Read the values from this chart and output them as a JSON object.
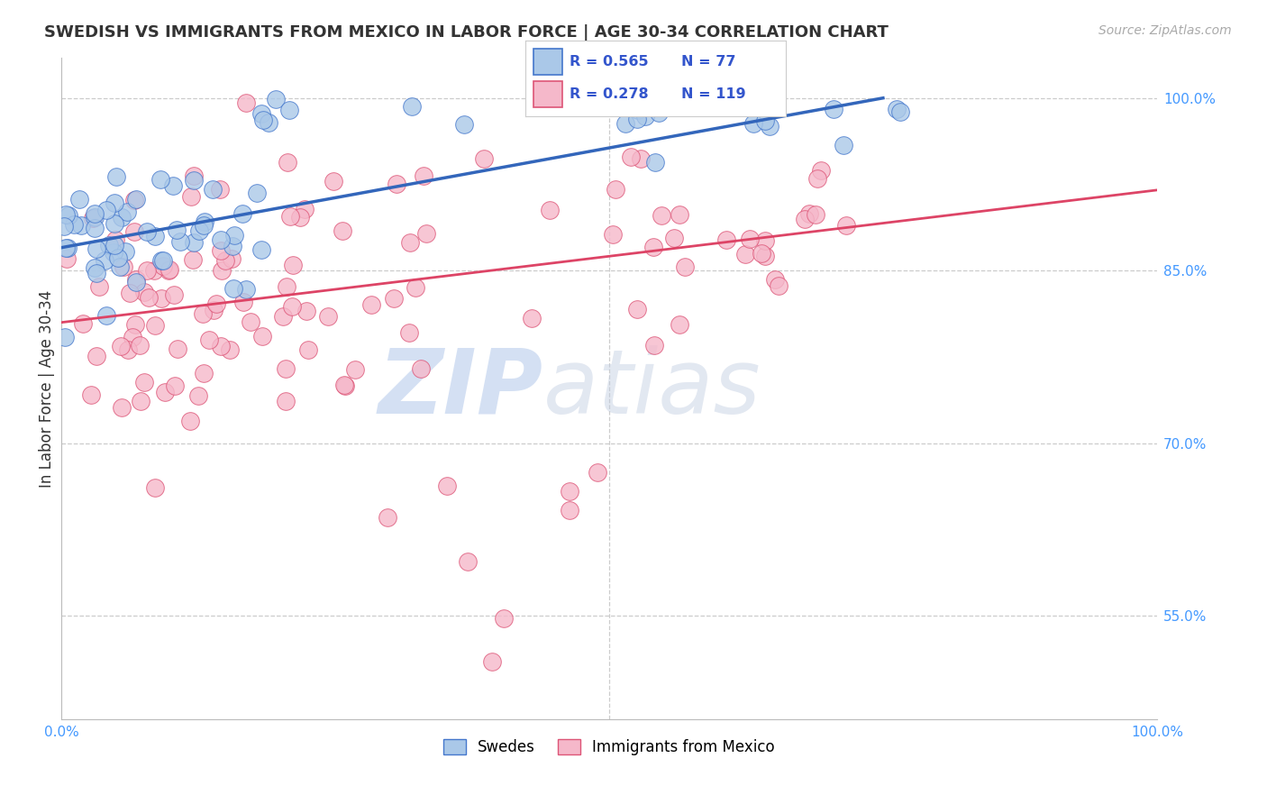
{
  "title": "SWEDISH VS IMMIGRANTS FROM MEXICO IN LABOR FORCE | AGE 30-34 CORRELATION CHART",
  "source": "Source: ZipAtlas.com",
  "ylabel": "In Labor Force | Age 30-34",
  "xlim": [
    0.0,
    1.0
  ],
  "ylim": [
    0.46,
    1.035
  ],
  "ytick_vals": [
    0.55,
    0.7,
    0.85,
    1.0
  ],
  "ytick_labels": [
    "55.0%",
    "70.0%",
    "85.0%",
    "100.0%"
  ],
  "blue_R": 0.565,
  "blue_N": 77,
  "pink_R": 0.278,
  "pink_N": 119,
  "blue_color": "#aac8e8",
  "pink_color": "#f5b8ca",
  "blue_edge_color": "#4477cc",
  "pink_edge_color": "#dd5577",
  "blue_line_color": "#3366bb",
  "pink_line_color": "#dd4466",
  "watermark_zip_color": "#c5d8f0",
  "watermark_atlas_color": "#c8d4e8",
  "background_color": "#ffffff",
  "grid_color": "#cccccc",
  "title_color": "#333333",
  "right_tick_color": "#4499ff",
  "bottom_tick_color": "#4499ff",
  "legend_text_color": "#3355cc",
  "blue_line_y0": 0.87,
  "blue_line_y1": 1.0,
  "pink_line_y0": 0.805,
  "pink_line_y1": 0.92
}
